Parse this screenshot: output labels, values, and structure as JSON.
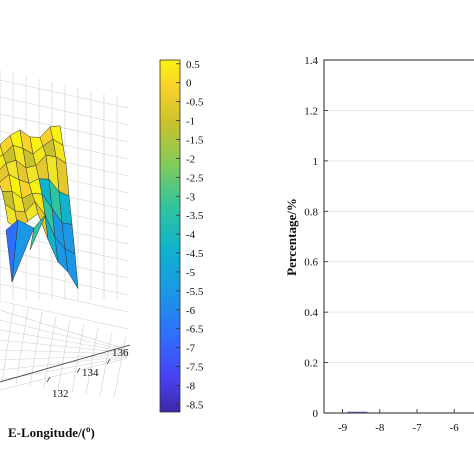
{
  "chart_data": [
    {
      "type": "surface",
      "xlabel": "E-Longitude/(°)",
      "x_ticks": [
        "132",
        "134",
        "136"
      ],
      "colorbar": {
        "ticks": [
          "0.5",
          "0",
          "-0.5",
          "-1",
          "-1.5",
          "-2",
          "-2.5",
          "-3",
          "-3.5",
          "-4",
          "-4.5",
          "-5",
          "-5.5",
          "-6",
          "-6.5",
          "-7",
          "-7.5",
          "-8",
          "-8.5"
        ],
        "range": [
          -8.7,
          0.6
        ],
        "colormap": "parula"
      },
      "grid": true
    },
    {
      "type": "bar",
      "ylabel": "Percentage/%",
      "ylim": [
        0,
        1.4
      ],
      "y_ticks": [
        "0",
        "0.2",
        "0.4",
        "0.6",
        "0.8",
        "1",
        "1.2",
        "1.4"
      ],
      "x_ticks": [
        "-9",
        "-8",
        "-7",
        "-6"
      ],
      "bars": [
        {
          "x": -8.6,
          "value": 0.005
        }
      ],
      "grid": true
    }
  ]
}
